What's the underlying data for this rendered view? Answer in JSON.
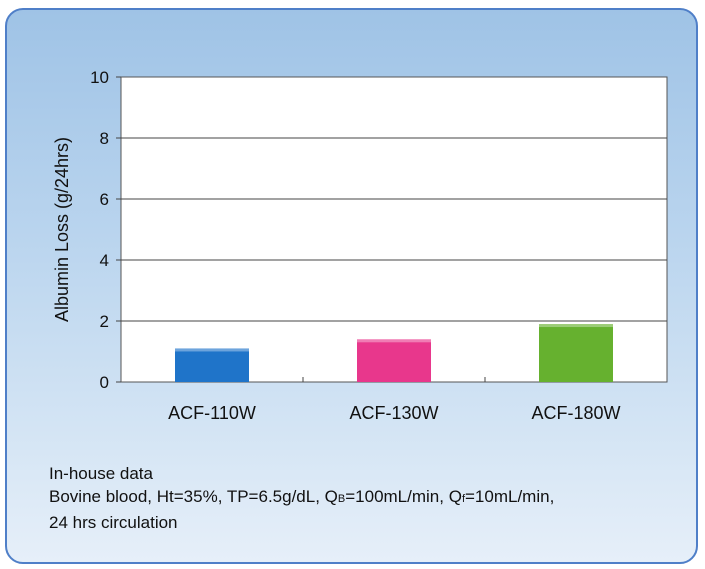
{
  "chart_data": {
    "type": "bar",
    "categories": [
      "ACF-110W",
      "ACF-130W",
      "ACF-180W"
    ],
    "values": [
      1.1,
      1.4,
      1.9
    ],
    "colors": [
      "#1f74c9",
      "#e8378c",
      "#66b12f"
    ],
    "ylabel": "Albumin Loss (g/24hrs)",
    "ylim": [
      0,
      10
    ],
    "yticks": [
      "0",
      "2",
      "4",
      "6",
      "8",
      "10"
    ],
    "grid": true
  },
  "notes": {
    "line1": "In-house data",
    "line2_a": "Bovine blood, Ht=35%, TP=6.5g/dL, Q",
    "line2_sub1": "B",
    "line2_b": "=100mL/min, Q",
    "line2_sub2": "f",
    "line2_c": "=10mL/min,",
    "line3": "24 hrs circulation"
  }
}
